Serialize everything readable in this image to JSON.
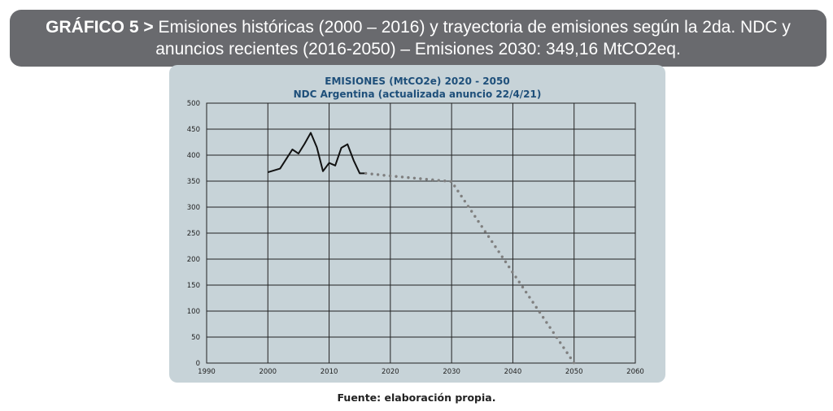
{
  "header": {
    "label": "GRÁFICO 5 >",
    "title": "Emisiones históricas (2000 – 2016) y trayectoria de emisiones según la 2da. NDC y anuncios recientes (2016-2050) – Emisiones 2030: 349,16 MtCO2eq."
  },
  "chart_data": {
    "type": "line",
    "title": "EMISIONES (MtCO2e) 2020 - 2050",
    "subtitle": "NDC Argentina (actualizada anuncio 22/4/21)",
    "xlabel": "",
    "ylabel": "",
    "xlim": [
      1990,
      2060
    ],
    "ylim": [
      0,
      500
    ],
    "x_ticks": [
      "1990",
      "2000",
      "2010",
      "2020",
      "2030",
      "2040",
      "2050",
      "2060"
    ],
    "y_ticks": [
      "0",
      "50",
      "100",
      "150",
      "200",
      "250",
      "300",
      "350",
      "400",
      "450",
      "500"
    ],
    "grid": true,
    "legend": "none",
    "series": [
      {
        "style": "solid",
        "color": "#111111",
        "x": [
          2000,
          2002,
          2004,
          2005,
          2006,
          2007,
          2008,
          2009,
          2010,
          2011,
          2012,
          2013,
          2014,
          2015,
          2016
        ],
        "y": [
          367,
          374,
          411,
          403,
          422,
          443,
          415,
          369,
          385,
          380,
          414,
          421,
          390,
          365,
          365
        ]
      },
      {
        "style": "dotted",
        "color": "#7f7f7f",
        "x": [
          2016,
          2020,
          2030,
          2040,
          2050
        ],
        "y": [
          365,
          360,
          349.16,
          174,
          0
        ]
      }
    ]
  },
  "footer": {
    "source": "Fuente: elaboración propia."
  }
}
